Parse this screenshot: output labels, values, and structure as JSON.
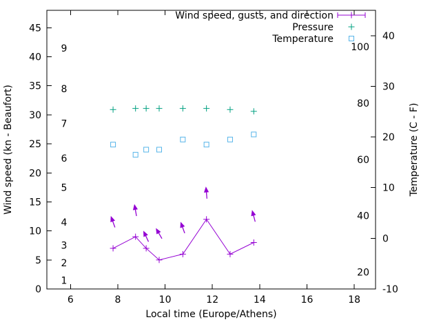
{
  "chart_data": {
    "type": "line",
    "title": "",
    "xlabel": "Local time (Europe/Athens)",
    "ylabel_left": "Wind speed (kn - Beaufort)",
    "ylabel_right": "Temperature (C - F)",
    "grid": false,
    "legend_position": "top-right-inside",
    "x_range": [
      5.0,
      18.9
    ],
    "x_ticks": [
      6,
      8,
      10,
      12,
      14,
      16,
      18
    ],
    "y_left_range": [
      0,
      48
    ],
    "y_left_ticks": [
      0,
      5,
      10,
      15,
      20,
      25,
      30,
      35,
      40,
      45
    ],
    "beaufort_inner_labels": [
      {
        "text": "1",
        "kn": 1.5
      },
      {
        "text": "2",
        "kn": 4.5
      },
      {
        "text": "3",
        "kn": 7.5
      },
      {
        "text": "4",
        "kn": 11.5
      },
      {
        "text": "5",
        "kn": 17.5
      },
      {
        "text": "6",
        "kn": 22.5
      },
      {
        "text": "7",
        "kn": 28.5
      },
      {
        "text": "8",
        "kn": 34.5
      },
      {
        "text": "9",
        "kn": 41.5
      }
    ],
    "y_right_range_c": [
      -10,
      45
    ],
    "y_right_ticks_c": [
      -10,
      0,
      10,
      20,
      30,
      40
    ],
    "fahrenheit_inner_labels": [
      20,
      40,
      60,
      80,
      100
    ],
    "colors": {
      "wind": "#9400d3",
      "pressure": "#00a080",
      "temperature": "#56b4e9",
      "axis": "#000000"
    },
    "legend": [
      {
        "key": "wind",
        "label": "Wind speed, gusts, and direction",
        "marker": "errorbar-line",
        "color": "#9400d3"
      },
      {
        "key": "pressure",
        "label": "Pressure",
        "marker": "plus",
        "color": "#00a080"
      },
      {
        "key": "temperature",
        "label": "Temperature",
        "marker": "square",
        "color": "#56b4e9"
      }
    ],
    "series": {
      "wind_speed": {
        "name": "Wind speed (kn)",
        "color": "#9400d3",
        "axis": "left",
        "x": [
          7.8,
          8.75,
          9.2,
          9.75,
          10.75,
          11.75,
          12.75,
          13.75
        ],
        "values": [
          7,
          9,
          7,
          5,
          6,
          12,
          6,
          8
        ]
      },
      "gusts": {
        "name": "Gusts with direction arrows (kn)",
        "color": "#9400d3",
        "axis": "left",
        "points": [
          {
            "x": 7.8,
            "value": 11.5,
            "dir_deg": -20
          },
          {
            "x": 8.75,
            "value": 13.5,
            "dir_deg": -10
          },
          {
            "x": 9.2,
            "value": 9.0,
            "dir_deg": -25
          },
          {
            "x": 9.75,
            "value": 9.5,
            "dir_deg": -30
          },
          {
            "x": 10.75,
            "value": 10.5,
            "dir_deg": -20
          },
          {
            "x": 11.75,
            "value": 16.5,
            "dir_deg": -5
          },
          {
            "x": 13.75,
            "value": 12.5,
            "dir_deg": -15
          }
        ]
      },
      "pressure": {
        "name": "Pressure",
        "color": "#00a080",
        "axis": "left",
        "x": [
          7.8,
          8.75,
          9.2,
          9.75,
          10.75,
          11.75,
          12.75,
          13.75
        ],
        "values_left_axis": [
          30.9,
          31.1,
          31.1,
          31.1,
          31.1,
          31.1,
          30.9,
          30.6
        ]
      },
      "temperature": {
        "name": "Temperature (C)",
        "color": "#56b4e9",
        "axis": "right",
        "x": [
          7.8,
          8.75,
          9.2,
          9.75,
          10.75,
          11.75,
          12.75,
          13.75
        ],
        "values_c": [
          18.5,
          16.5,
          17.5,
          17.5,
          19.5,
          18.5,
          19.5,
          20.5
        ]
      }
    }
  }
}
